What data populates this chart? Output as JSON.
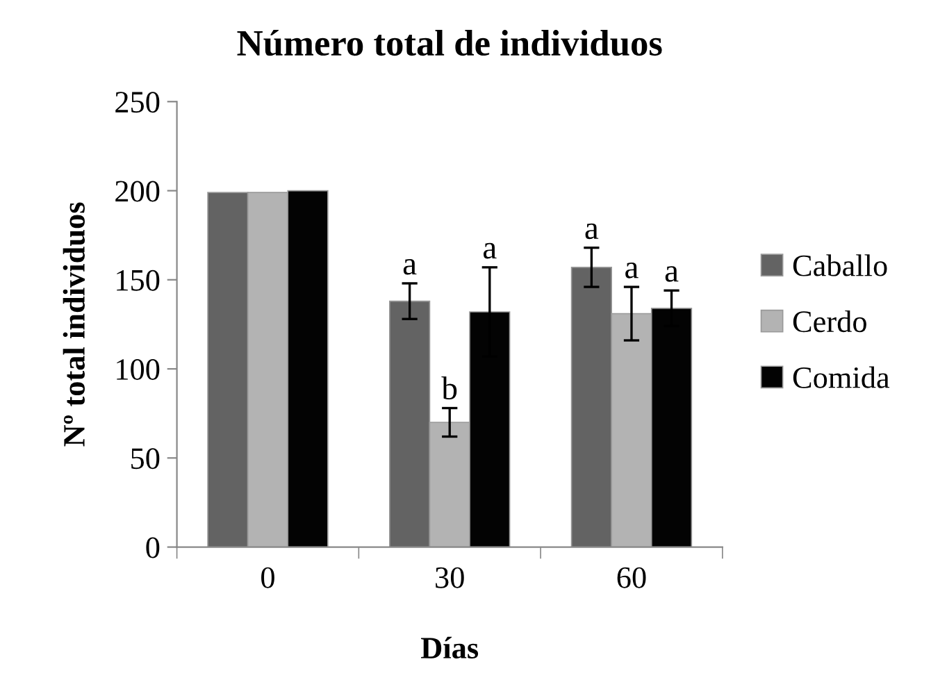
{
  "chart_data": {
    "type": "bar",
    "title": "Número total de individuos",
    "xlabel": "Días",
    "ylabel": "Nº total individuos",
    "categories": [
      "0",
      "30",
      "60"
    ],
    "series": [
      {
        "name": "Caballo",
        "color": "#636363",
        "values": [
          199,
          138,
          157
        ],
        "errors": [
          null,
          10,
          11
        ],
        "value_labels": [
          null,
          "a",
          "a"
        ]
      },
      {
        "name": "Cerdo",
        "color": "#b3b3b3",
        "values": [
          199,
          70,
          131
        ],
        "errors": [
          null,
          8,
          15
        ],
        "value_labels": [
          null,
          "b",
          "a"
        ]
      },
      {
        "name": "Comida",
        "color": "#030303",
        "values": [
          200,
          132,
          134
        ],
        "errors": [
          null,
          25,
          10
        ],
        "value_labels": [
          null,
          "a",
          "a"
        ]
      }
    ],
    "ylim": [
      0,
      250
    ],
    "yticks": [
      0,
      50,
      100,
      150,
      200,
      250
    ],
    "grid": false,
    "legend": "right"
  }
}
